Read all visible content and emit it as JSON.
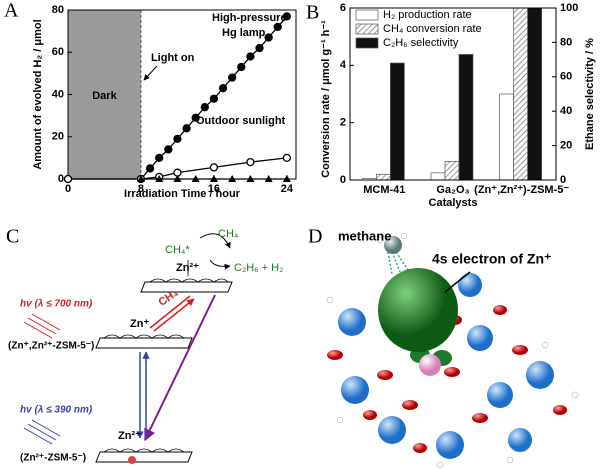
{
  "chart_data": [
    {
      "type": "line",
      "label": "A",
      "xlabel": "Irradiation Time / hour",
      "ylabel": "Amount of evolved H₂ / μmol",
      "xlim": [
        0,
        25
      ],
      "ylim": [
        0,
        80
      ],
      "xticks": [
        0,
        8,
        16,
        24
      ],
      "yticks": [
        0,
        20,
        40,
        60,
        80
      ],
      "dark_region": [
        0,
        8
      ],
      "dark_label": "Dark",
      "annotation": "Light on",
      "series": [
        {
          "label_lines": [
            "High-pressure",
            "Hg lamp"
          ],
          "marker": "filled-circle",
          "color": "#000",
          "x": [
            0,
            8,
            9,
            10,
            11,
            12,
            13,
            14,
            15,
            16,
            17,
            18,
            19,
            20,
            21,
            22,
            23,
            24
          ],
          "values": [
            0,
            0,
            5,
            10,
            14,
            19,
            24,
            29,
            34,
            38,
            43,
            48,
            53,
            58,
            62,
            67,
            72,
            77
          ]
        },
        {
          "label_lines": [
            "Outdoor sunlight"
          ],
          "marker": "open-circle",
          "color": "#000",
          "x": [
            0,
            8,
            10,
            12,
            16,
            20,
            24
          ],
          "values": [
            0,
            0,
            1,
            3,
            5.5,
            8,
            10
          ]
        },
        {
          "marker": "triangle",
          "color": "#000",
          "x": [
            8,
            10,
            12,
            14,
            16,
            18,
            20,
            22,
            24
          ],
          "values": [
            0,
            0,
            0,
            0,
            0,
            0,
            0,
            0,
            0
          ]
        }
      ]
    },
    {
      "type": "bar",
      "label": "B",
      "xlabel": "Catalysts",
      "ylabel": "Conversion rate / μmol g⁻¹ h⁻¹",
      "y2label": "Ethane selectivity / %",
      "categories": [
        "MCM-41",
        "Ga₂O₃",
        "(Zn⁺,Zn²⁺)-ZSM-5⁻"
      ],
      "ylim": [
        0,
        6
      ],
      "yticks": [
        0,
        2,
        4,
        6
      ],
      "y2lim": [
        0,
        100
      ],
      "y2ticks": [
        0,
        20,
        40,
        60,
        80,
        100
      ],
      "legend": "upper-left",
      "series": [
        {
          "name": "H₂ production rate",
          "fill": "white",
          "values": [
            0.05,
            0.25,
            3.0
          ]
        },
        {
          "name": "CH₄ conversion rate",
          "fill": "hatch",
          "values": [
            0.2,
            0.65,
            6.0
          ]
        },
        {
          "name": "C₂H₆ selectivity",
          "fill": "black",
          "axis": "y2",
          "values": [
            68,
            73,
            100
          ]
        }
      ]
    }
  ],
  "diagram_c": {
    "label": "C",
    "labels": [
      "CH₄*",
      "CH₄",
      "Zn²⁺",
      "C₂H₆ + H₂",
      "hv (λ ≤ 700 nm)",
      "CH₄",
      "Zn⁺",
      "(Zn⁺,Zn²⁺-ZSM-5⁻)",
      "hv (λ ≤ 390 nm)",
      "Zn²⁺",
      "(Zn²⁺-ZSM-5⁻)"
    ]
  },
  "diagram_d": {
    "label": "D",
    "labels": [
      "methane",
      "4s electron of Zn⁺"
    ]
  }
}
